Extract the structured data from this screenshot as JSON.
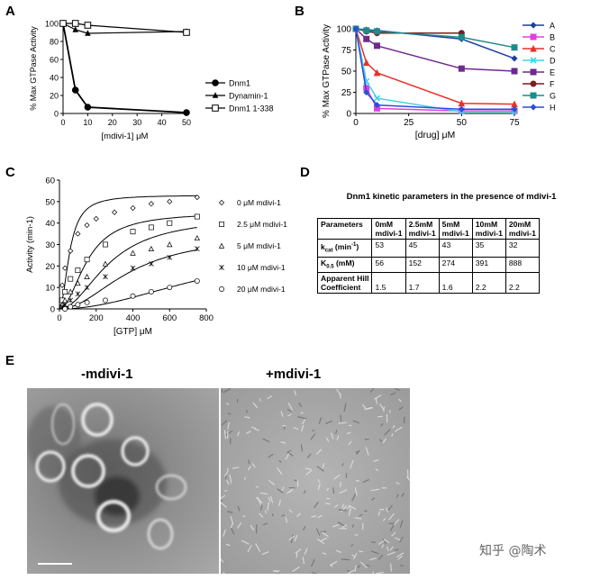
{
  "panels": {
    "a": "A",
    "b": "B",
    "c": "C",
    "d": "D",
    "e": "E"
  },
  "chart_data": [
    {
      "id": "A",
      "type": "line",
      "xlabel": "[mdivi-1] μM",
      "ylabel": "% Max GTPase Activity",
      "xlim": [
        0,
        50
      ],
      "ylim": [
        0,
        100
      ],
      "xticks": [
        0,
        10,
        20,
        30,
        40,
        50
      ],
      "yticks": [
        0,
        20,
        40,
        60,
        80,
        100
      ],
      "grid": false,
      "legend": "right",
      "series": [
        {
          "name": "Dnm1",
          "marker": "filled-circle",
          "x": [
            0,
            5,
            10,
            50
          ],
          "y": [
            100,
            26,
            7,
            1
          ]
        },
        {
          "name": "Dynamin-1",
          "marker": "filled-triangle",
          "x": [
            0,
            5,
            10,
            50
          ],
          "y": [
            100,
            93,
            89,
            91
          ]
        },
        {
          "name": "Dnm1 1-338",
          "marker": "open-square",
          "x": [
            0,
            5,
            10,
            50
          ],
          "y": [
            100,
            100,
            98,
            90
          ]
        }
      ]
    },
    {
      "id": "B",
      "type": "line",
      "xlabel": "[drug] μM",
      "ylabel": "% Max GTPase Activity",
      "xlim": [
        0,
        75
      ],
      "ylim": [
        0,
        100
      ],
      "xticks": [
        0,
        25,
        50,
        75
      ],
      "yticks": [
        0,
        25,
        50,
        75,
        100
      ],
      "grid": false,
      "legend": "right",
      "series": [
        {
          "name": "A",
          "color": "#1f3fa3",
          "marker": "diamond",
          "x": [
            0,
            5,
            10,
            50,
            75
          ],
          "y": [
            100,
            99,
            98,
            88,
            65
          ]
        },
        {
          "name": "B",
          "color": "#e040e0",
          "marker": "square",
          "x": [
            0,
            5,
            10,
            50,
            75
          ],
          "y": [
            100,
            30,
            6,
            3,
            3
          ]
        },
        {
          "name": "C",
          "color": "#e8312a",
          "marker": "triangle",
          "x": [
            0,
            5,
            10,
            50,
            75
          ],
          "y": [
            100,
            60,
            48,
            12,
            11
          ]
        },
        {
          "name": "D",
          "color": "#3fd4e8",
          "marker": "x",
          "x": [
            0,
            5,
            10,
            50,
            75
          ],
          "y": [
            100,
            38,
            18,
            2,
            2
          ]
        },
        {
          "name": "E",
          "color": "#6e2a8c",
          "marker": "square",
          "x": [
            0,
            5,
            10,
            50,
            75
          ],
          "y": [
            100,
            88,
            80,
            53,
            50
          ]
        },
        {
          "name": "F",
          "color": "#7a1f1f",
          "marker": "circle",
          "x": [
            0,
            5,
            10,
            50
          ],
          "y": [
            100,
            97,
            95,
            95
          ]
        },
        {
          "name": "G",
          "color": "#1f8a8a",
          "marker": "square",
          "x": [
            0,
            5,
            10,
            50,
            75
          ],
          "y": [
            100,
            98,
            97,
            90,
            78
          ]
        },
        {
          "name": "H",
          "color": "#2a4fd6",
          "marker": "diamond",
          "x": [
            0,
            5,
            10,
            50,
            75
          ],
          "y": [
            100,
            25,
            10,
            5,
            5
          ]
        }
      ]
    },
    {
      "id": "C",
      "type": "scatter",
      "xlabel": "[GTP] μM",
      "ylabel": "Activity (min-1)",
      "xlim": [
        0,
        800
      ],
      "ylim": [
        0,
        60
      ],
      "xticks": [
        0,
        200,
        400,
        600,
        800
      ],
      "yticks": [
        0,
        10,
        20,
        30,
        40,
        50,
        60
      ],
      "grid": false,
      "legend": "right",
      "series": [
        {
          "name": "0 μM mdivi-1",
          "marker": "diamond",
          "km": 56,
          "vmax": 53,
          "x": [
            15,
            30,
            60,
            100,
            150,
            200,
            300,
            400,
            500,
            600,
            750
          ],
          "y": [
            11,
            19,
            27,
            35,
            39,
            42,
            45,
            47,
            49,
            50,
            52
          ]
        },
        {
          "name": "2.5 μM mdivi-1",
          "marker": "square",
          "km": 152,
          "vmax": 45,
          "x": [
            15,
            30,
            60,
            100,
            150,
            250,
            400,
            500,
            600,
            750
          ],
          "y": [
            4,
            8,
            14,
            18,
            23,
            30,
            36,
            38,
            40,
            43
          ]
        },
        {
          "name": "5 μM mdivi-1",
          "marker": "triangle",
          "km": 274,
          "vmax": 43,
          "x": [
            15,
            30,
            60,
            100,
            150,
            250,
            400,
            500,
            600,
            750
          ],
          "y": [
            2,
            4,
            8,
            12,
            15,
            21,
            26,
            28,
            30,
            33
          ]
        },
        {
          "name": "10 μM mdivi-1",
          "marker": "asterisk",
          "km": 391,
          "vmax": 35,
          "x": [
            15,
            30,
            60,
            100,
            150,
            250,
            400,
            500,
            600,
            750
          ],
          "y": [
            1,
            2,
            4,
            7,
            10,
            15,
            19,
            21,
            24,
            28
          ]
        },
        {
          "name": "20 μM mdivi-1",
          "marker": "circle",
          "km": 888,
          "vmax": 32,
          "x": [
            30,
            60,
            100,
            150,
            250,
            400,
            500,
            600,
            750
          ],
          "y": [
            0,
            1,
            2,
            3,
            4,
            6,
            8,
            10,
            13
          ]
        }
      ]
    }
  ],
  "table": {
    "title": "Dnm1 kinetic parameters in the presence of mdivi-1",
    "header": [
      "Parameters",
      "0mM mdivi-1",
      "2.5mM mdivi-1",
      "5mM mdivi-1",
      "10mM mdivi-1",
      "20mM mdivi-1"
    ],
    "header_lines": [
      [
        "Parameters",
        ""
      ],
      [
        "0mM",
        "mdivi-1"
      ],
      [
        "2.5mM",
        "mdivi-1"
      ],
      [
        "5mM",
        "mdivi-1"
      ],
      [
        "10mM",
        "mdivi-1"
      ],
      [
        "20mM",
        "mdivi-1"
      ]
    ],
    "rows": [
      {
        "param": "k",
        "sub": "cat",
        "suffix": " (min",
        "sup": "-1",
        "close": ")",
        "values": [
          "53",
          "45",
          "43",
          "35",
          "32"
        ]
      },
      {
        "param": "K",
        "sub": "0.5",
        "suffix": " (mM)",
        "sup": "",
        "close": "",
        "values": [
          "56",
          "152",
          "274",
          "391",
          "888"
        ]
      },
      {
        "param_line1": "Apparent    Hill",
        "param_line2": "Coefficient",
        "values": [
          "1.5",
          "1.7",
          "1.6",
          "2.2",
          "2.2"
        ]
      }
    ]
  },
  "em": {
    "left_title": "-mdivi-1",
    "right_title": "+mdivi-1"
  },
  "watermark": "知乎 @陶术"
}
